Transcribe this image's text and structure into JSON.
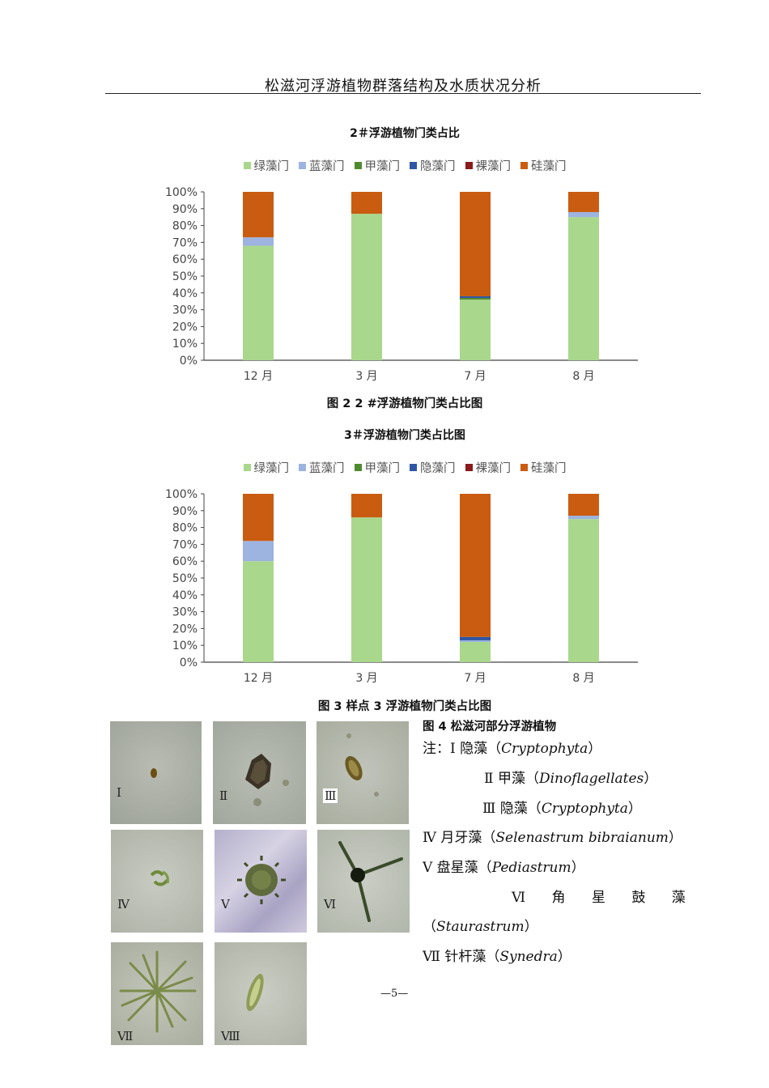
{
  "header": {
    "title": "松滋河浮游植物群落结构及水质状况分析"
  },
  "colors": {
    "绿藻门": "#a9d78c",
    "蓝藻门": "#9db3e0",
    "甲藻门": "#4f8b2e",
    "隐藻门": "#2f55a4",
    "裸藻门": "#8b1a1a",
    "硅藻门": "#c95c10"
  },
  "legend": [
    "绿藻门",
    "蓝藻门",
    "甲藻门",
    "隐藻门",
    "裸藻门",
    "硅藻门"
  ],
  "chart_data": [
    {
      "type": "bar",
      "stacked": true,
      "title": "2＃浮游植物门类占比",
      "categories": [
        "12 月",
        "3 月",
        "7 月",
        "8 月"
      ],
      "yticks": [
        "0%",
        "10%",
        "20%",
        "30%",
        "40%",
        "50%",
        "60%",
        "70%",
        "80%",
        "90%",
        "100%"
      ],
      "ylim": [
        0,
        100
      ],
      "legend_position": "top",
      "series": [
        {
          "name": "绿藻门",
          "values": [
            68,
            87,
            36,
            85
          ]
        },
        {
          "name": "蓝藻门",
          "values": [
            5,
            0,
            0,
            3
          ]
        },
        {
          "name": "甲藻门",
          "values": [
            0,
            0,
            1,
            0
          ]
        },
        {
          "name": "隐藻门",
          "values": [
            0,
            0,
            1,
            0
          ]
        },
        {
          "name": "裸藻门",
          "values": [
            0,
            0,
            0,
            0
          ]
        },
        {
          "name": "硅藻门",
          "values": [
            27,
            13,
            62,
            12
          ]
        }
      ],
      "caption": "图 2  2 #浮游植物门类占比图"
    },
    {
      "type": "bar",
      "stacked": true,
      "title": "3＃浮游植物门类占比图",
      "categories": [
        "12 月",
        "3 月",
        "7 月",
        "8 月"
      ],
      "yticks": [
        "0%",
        "10%",
        "20%",
        "30%",
        "40%",
        "50%",
        "60%",
        "70%",
        "80%",
        "90%",
        "100%"
      ],
      "ylim": [
        0,
        100
      ],
      "legend_position": "top",
      "series": [
        {
          "name": "绿藻门",
          "values": [
            60,
            86,
            12,
            85
          ]
        },
        {
          "name": "蓝藻门",
          "values": [
            12,
            0,
            1,
            2
          ]
        },
        {
          "name": "甲藻门",
          "values": [
            0,
            0,
            0,
            0
          ]
        },
        {
          "name": "隐藻门",
          "values": [
            0,
            0,
            2,
            0
          ]
        },
        {
          "name": "裸藻门",
          "values": [
            0,
            0,
            0,
            0
          ]
        },
        {
          "name": "硅藻门",
          "values": [
            28,
            14,
            85,
            13
          ]
        }
      ],
      "caption": "图 3  样点 3 浮游植物门类占比图"
    }
  ],
  "figure4": {
    "caption": "图 4  松滋河部分浮游植物",
    "photo_labels": [
      "Ⅰ",
      "Ⅱ",
      "Ⅲ",
      "Ⅳ",
      "Ⅴ",
      "Ⅵ",
      "Ⅶ",
      "Ⅷ"
    ],
    "notes": [
      {
        "prefix": "注：Ⅰ  隐藻（",
        "latin": "Cryptophyta",
        "suffix": "）"
      },
      {
        "prefix": "Ⅱ  甲藻（",
        "latin": "Dinoflagellates",
        "suffix": "）"
      },
      {
        "prefix": "Ⅲ  隐藻（",
        "latin": "Cryptophyta",
        "suffix": "）"
      },
      {
        "prefix": "Ⅳ  月牙藻（",
        "latin": "Selenastrum bibraianum",
        "suffix": "）"
      },
      {
        "prefix": "Ⅴ  盘星藻（",
        "latin": "Pediastrum",
        "suffix": "）"
      },
      {
        "prefix": "Ⅵ      角      星      鼓      藻",
        "latin": "",
        "suffix": ""
      },
      {
        "prefix": "（",
        "latin": "Staurastrum",
        "suffix": "）"
      },
      {
        "prefix": "Ⅶ  针杆藻（",
        "latin": "Synedra",
        "suffix": "）"
      }
    ]
  },
  "footer": {
    "page_number": "—5—"
  }
}
